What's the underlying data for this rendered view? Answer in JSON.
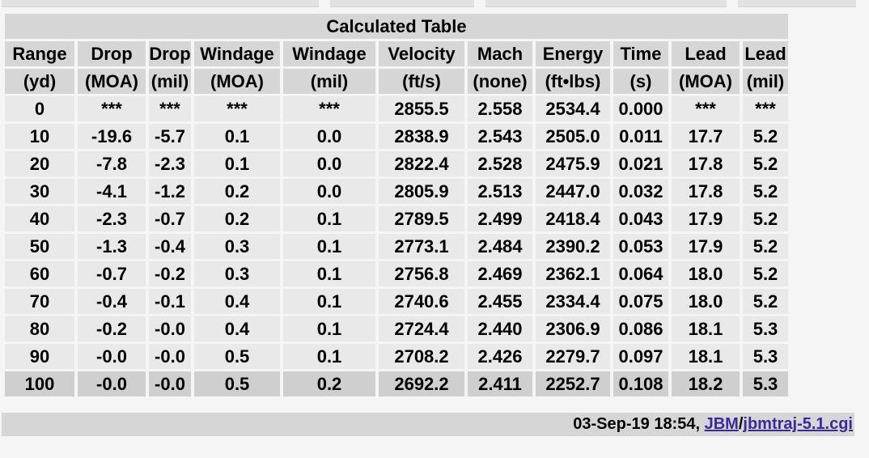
{
  "title": "Calculated Table",
  "headers": [
    [
      "Range",
      "(yd)"
    ],
    [
      "Drop",
      "(MOA)"
    ],
    [
      "Drop",
      "(mil)"
    ],
    [
      "Windage",
      "(MOA)"
    ],
    [
      "Windage",
      "(mil)"
    ],
    [
      "Velocity",
      "(ft/s)"
    ],
    [
      "Mach",
      "(none)"
    ],
    [
      "Energy",
      "(ft•lbs)"
    ],
    [
      "Time",
      "(s)"
    ],
    [
      "Lead",
      "(MOA)"
    ],
    [
      "Lead",
      "(mil)"
    ]
  ],
  "rows": [
    [
      "0",
      "***",
      "***",
      "***",
      "***",
      "2855.5",
      "2.558",
      "2534.4",
      "0.000",
      "***",
      "***"
    ],
    [
      "10",
      "-19.6",
      "-5.7",
      "0.1",
      "0.0",
      "2838.9",
      "2.543",
      "2505.0",
      "0.011",
      "17.7",
      "5.2"
    ],
    [
      "20",
      "-7.8",
      "-2.3",
      "0.1",
      "0.0",
      "2822.4",
      "2.528",
      "2475.9",
      "0.021",
      "17.8",
      "5.2"
    ],
    [
      "30",
      "-4.1",
      "-1.2",
      "0.2",
      "0.0",
      "2805.9",
      "2.513",
      "2447.0",
      "0.032",
      "17.8",
      "5.2"
    ],
    [
      "40",
      "-2.3",
      "-0.7",
      "0.2",
      "0.1",
      "2789.5",
      "2.499",
      "2418.4",
      "0.043",
      "17.9",
      "5.2"
    ],
    [
      "50",
      "-1.3",
      "-0.4",
      "0.3",
      "0.1",
      "2773.1",
      "2.484",
      "2390.2",
      "0.053",
      "17.9",
      "5.2"
    ],
    [
      "60",
      "-0.7",
      "-0.2",
      "0.3",
      "0.1",
      "2756.8",
      "2.469",
      "2362.1",
      "0.064",
      "18.0",
      "5.2"
    ],
    [
      "70",
      "-0.4",
      "-0.1",
      "0.4",
      "0.1",
      "2740.6",
      "2.455",
      "2334.4",
      "0.075",
      "18.0",
      "5.2"
    ],
    [
      "80",
      "-0.2",
      "-0.0",
      "0.4",
      "0.1",
      "2724.4",
      "2.440",
      "2306.9",
      "0.086",
      "18.1",
      "5.3"
    ],
    [
      "90",
      "-0.0",
      "-0.0",
      "0.5",
      "0.1",
      "2708.2",
      "2.426",
      "2279.7",
      "0.097",
      "18.1",
      "5.3"
    ],
    [
      "100",
      "-0.0",
      "-0.0",
      "0.5",
      "0.2",
      "2692.2",
      "2.411",
      "2252.7",
      "0.108",
      "18.2",
      "5.3"
    ]
  ],
  "footer": {
    "timestamp": "03-Sep-19 18:54, ",
    "link1": "JBM",
    "sep": "/",
    "link2": "jbmtraj-5.1.cgi"
  }
}
